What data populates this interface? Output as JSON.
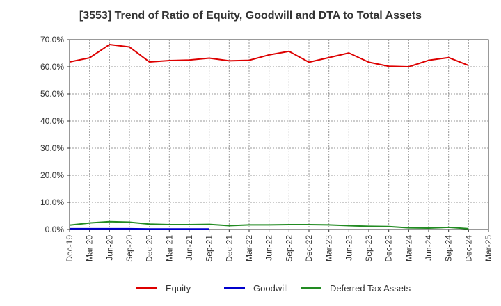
{
  "chart_data": {
    "type": "line",
    "title": "[3553]  Trend of Ratio of Equity, Goodwill and DTA to Total Assets",
    "xlabel": "",
    "ylabel": "",
    "ylim": [
      0,
      70
    ],
    "y_ticks": [
      "0.0%",
      "10.0%",
      "20.0%",
      "30.0%",
      "40.0%",
      "50.0%",
      "60.0%",
      "70.0%"
    ],
    "categories": [
      "Dec-19",
      "Mar-20",
      "Jun-20",
      "Sep-20",
      "Dec-20",
      "Mar-21",
      "Jun-21",
      "Sep-21",
      "Dec-21",
      "Mar-22",
      "Jun-22",
      "Sep-22",
      "Dec-22",
      "Mar-23",
      "Jun-23",
      "Sep-23",
      "Dec-23",
      "Mar-24",
      "Jun-24",
      "Sep-24",
      "Dec-24",
      "Mar-25"
    ],
    "grid": true,
    "legend_position": "bottom",
    "series": [
      {
        "name": "Equity",
        "color": "#dd0000",
        "values": [
          61.8,
          63.3,
          68.2,
          67.3,
          61.8,
          62.3,
          62.5,
          63.2,
          62.2,
          62.4,
          64.4,
          65.7,
          61.7,
          63.4,
          65.1,
          61.7,
          60.2,
          60.0,
          62.4,
          63.4,
          60.5,
          null
        ]
      },
      {
        "name": "Goodwill",
        "color": "#0000cc",
        "values": [
          0.3,
          0.3,
          0.3,
          0.3,
          0.2,
          0.2,
          0.2,
          0.2,
          null,
          null,
          null,
          null,
          null,
          null,
          null,
          null,
          null,
          null,
          null,
          null,
          null,
          null
        ]
      },
      {
        "name": "Deferred Tax Assets",
        "color": "#228b22",
        "values": [
          1.6,
          2.4,
          2.9,
          2.7,
          2.0,
          1.8,
          1.8,
          1.9,
          1.4,
          1.7,
          1.7,
          1.8,
          1.8,
          1.7,
          1.4,
          1.2,
          1.1,
          0.6,
          0.5,
          0.8,
          0.3,
          null
        ]
      }
    ]
  }
}
